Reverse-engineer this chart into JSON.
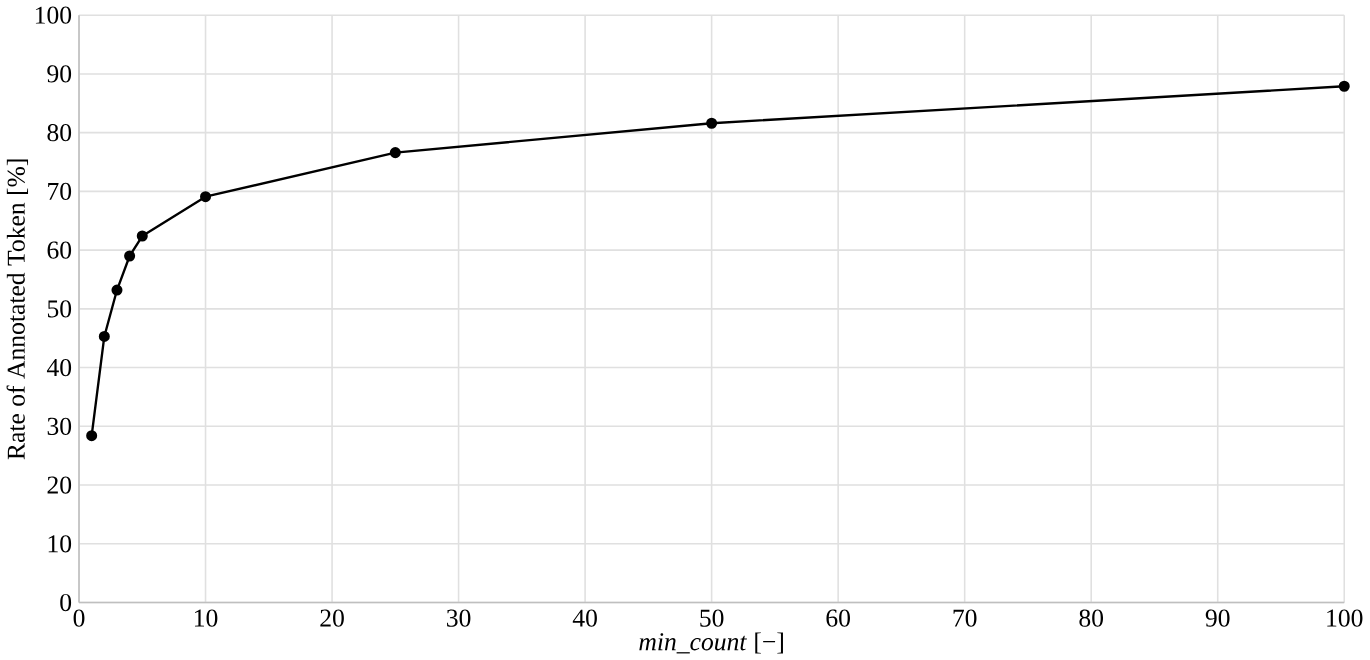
{
  "chart_data": {
    "type": "line",
    "xlabel": "*min_count* [−]",
    "ylabel": "Rate of Annotated Token [%]",
    "x": [
      1,
      2,
      3,
      4,
      5,
      10,
      25,
      50,
      100
    ],
    "series": [
      {
        "color": "#000000",
        "values": [
          28.4,
          45.3,
          53.2,
          59.0,
          62.4,
          69.1,
          76.6,
          81.6,
          87.9
        ]
      }
    ],
    "xlim": [
      0,
      100
    ],
    "ylim": [
      0,
      100
    ],
    "xticks": [
      0,
      10,
      20,
      30,
      40,
      50,
      60,
      70,
      80,
      90,
      100
    ],
    "yticks": [
      0,
      10,
      20,
      30,
      40,
      50,
      60,
      70,
      80,
      90,
      100
    ],
    "grid": true,
    "marker": "circle",
    "line_style": "solid"
  }
}
